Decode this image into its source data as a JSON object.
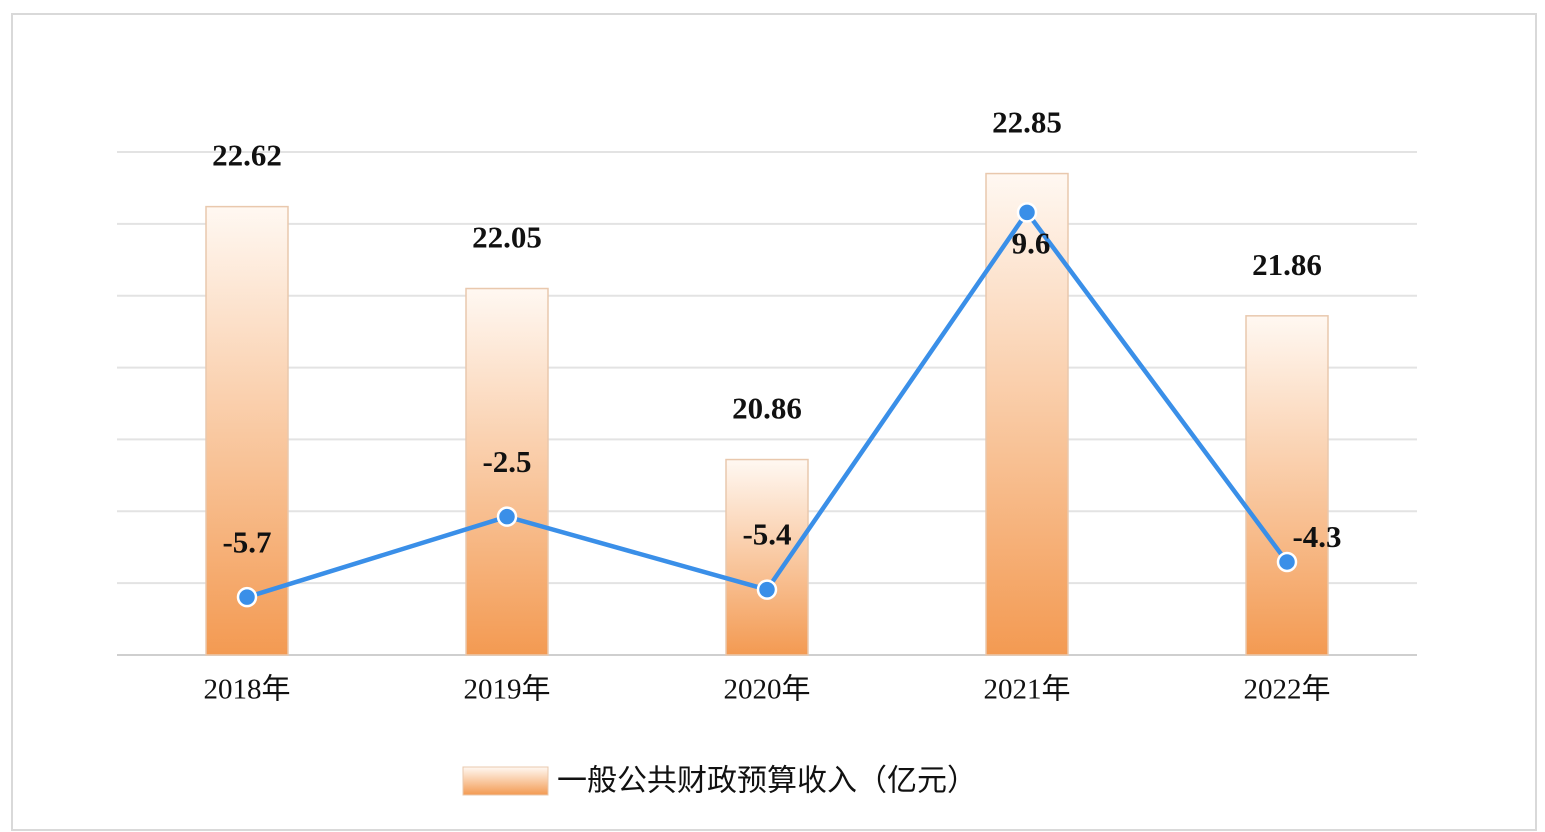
{
  "chart_data": {
    "type": "bar",
    "categories": [
      "2018年",
      "2019年",
      "2020年",
      "2021年",
      "2022年"
    ],
    "series": [
      {
        "name": "一般公共财政预算收入（亿元）",
        "type": "bar",
        "color": "#f39a52",
        "values": [
          22.62,
          22.05,
          20.86,
          22.85,
          21.86
        ]
      },
      {
        "type": "line",
        "axis": "y2",
        "color": "#3a8fe8",
        "values": [
          -5.7,
          -2.5,
          -5.4,
          9.6,
          -4.3
        ]
      }
    ],
    "ylim": [
      19.5,
      23
    ],
    "yticks": [
      19.5,
      20,
      20.5,
      21,
      21.5,
      22,
      22.5,
      23
    ],
    "y2lim": [
      -8,
      12
    ],
    "grid": true,
    "show_y_tick_labels": false,
    "legend": "bottom"
  }
}
